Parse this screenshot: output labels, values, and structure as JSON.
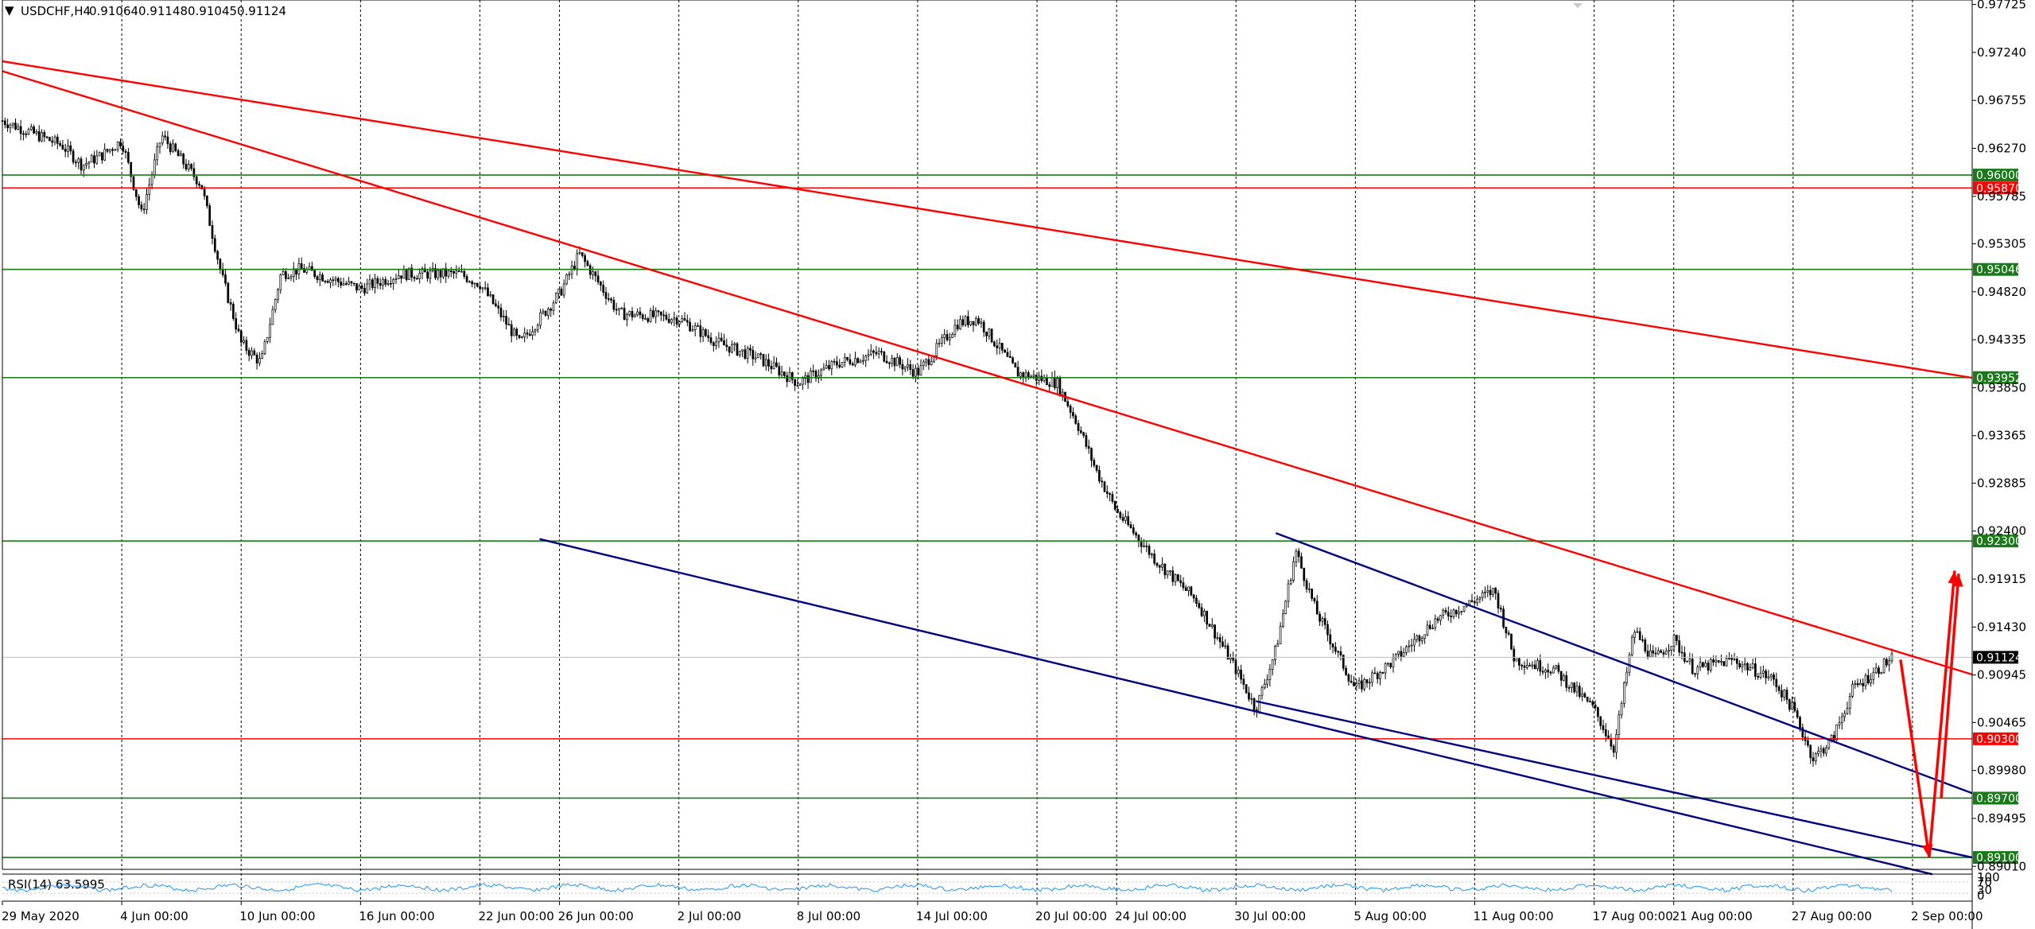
{
  "header": {
    "symbol_label": "USDCHF,H4",
    "ohlc": [
      "0.91064",
      "0.91148",
      "0.91045",
      "0.91124"
    ]
  },
  "rsi": {
    "label": "RSI(14) 63.5995",
    "scale_labels": [
      "100",
      "70",
      "30",
      "0"
    ],
    "color": "#1e90ff"
  },
  "chart_data": {
    "type": "candlestick",
    "title": "",
    "xlabel": "",
    "ylabel": "",
    "x_ticks": [
      "29 May 2020",
      "4 Jun 00:00",
      "10 Jun 00:00",
      "16 Jun 00:00",
      "22 Jun 00:00",
      "26 Jun 00:00",
      "2 Jul 00:00",
      "8 Jul 00:00",
      "14 Jul 00:00",
      "20 Jul 00:00",
      "24 Jul 00:00",
      "30 Jul 00:00",
      "5 Aug 00:00",
      "11 Aug 00:00",
      "17 Aug 00:00",
      "21 Aug 00:00",
      "27 Aug 00:00",
      "2 Sep 00:00"
    ],
    "y_ticks": [
      "0.97725",
      "0.97240",
      "0.96755",
      "0.96270",
      "0.95785",
      "0.95305",
      "0.94820",
      "0.94335",
      "0.93850",
      "0.93365",
      "0.92885",
      "0.92400",
      "0.91915",
      "0.91430",
      "0.90945",
      "0.90465",
      "0.89980",
      "0.89495",
      "0.89010"
    ],
    "ylim": [
      0.8898,
      0.9777
    ],
    "grid": true,
    "last_price": "0.91124",
    "price_path": [
      {
        "x": "29 May 2020",
        "y": 0.9655
      },
      {
        "x": "1 Jun",
        "y": 0.963
      },
      {
        "x": "2 Jun",
        "y": 0.961
      },
      {
        "x": "3 Jun",
        "y": 0.962
      },
      {
        "x": "4 Jun",
        "y": 0.9635
      },
      {
        "x": "5 Jun",
        "y": 0.956
      },
      {
        "x": "6 Jun",
        "y": 0.964
      },
      {
        "x": "8 Jun",
        "y": 0.959
      },
      {
        "x": "9 Jun",
        "y": 0.95
      },
      {
        "x": "10 Jun",
        "y": 0.943
      },
      {
        "x": "11 Jun",
        "y": 0.941
      },
      {
        "x": "12 Jun",
        "y": 0.95
      },
      {
        "x": "13 Jun",
        "y": 0.9505
      },
      {
        "x": "16 Jun",
        "y": 0.9485
      },
      {
        "x": "18 Jun",
        "y": 0.95
      },
      {
        "x": "21 Jun",
        "y": 0.95
      },
      {
        "x": "22 Jun",
        "y": 0.949
      },
      {
        "x": "24 Jun",
        "y": 0.943
      },
      {
        "x": "26 Jun",
        "y": 0.948
      },
      {
        "x": "27 Jun",
        "y": 0.952
      },
      {
        "x": "29 Jun",
        "y": 0.946
      },
      {
        "x": "2 Jul",
        "y": 0.9455
      },
      {
        "x": "4 Jul",
        "y": 0.943
      },
      {
        "x": "6 Jul",
        "y": 0.9415
      },
      {
        "x": "8 Jul",
        "y": 0.939
      },
      {
        "x": "10 Jul",
        "y": 0.941
      },
      {
        "x": "12 Jul",
        "y": 0.942
      },
      {
        "x": "14 Jul",
        "y": 0.94
      },
      {
        "x": "16 Jul",
        "y": 0.945
      },
      {
        "x": "17 Jul",
        "y": 0.9455
      },
      {
        "x": "19 Jul",
        "y": 0.94
      },
      {
        "x": "21 Jul",
        "y": 0.939
      },
      {
        "x": "22 Jul",
        "y": 0.935
      },
      {
        "x": "23 Jul",
        "y": 0.93
      },
      {
        "x": "24 Jul",
        "y": 0.926
      },
      {
        "x": "26 Jul",
        "y": 0.921
      },
      {
        "x": "28 Jul",
        "y": 0.917
      },
      {
        "x": "30 Jul",
        "y": 0.91
      },
      {
        "x": "31 Jul",
        "y": 0.906
      },
      {
        "x": "1 Aug",
        "y": 0.912
      },
      {
        "x": "2 Aug",
        "y": 0.922
      },
      {
        "x": "3 Aug",
        "y": 0.916
      },
      {
        "x": "5 Aug",
        "y": 0.908
      },
      {
        "x": "7 Aug",
        "y": 0.911
      },
      {
        "x": "9 Aug",
        "y": 0.915
      },
      {
        "x": "11 Aug",
        "y": 0.917
      },
      {
        "x": "12 Aug",
        "y": 0.918
      },
      {
        "x": "13 Aug",
        "y": 0.911
      },
      {
        "x": "15 Aug",
        "y": 0.91
      },
      {
        "x": "17 Aug",
        "y": 0.906
      },
      {
        "x": "18 Aug",
        "y": 0.902
      },
      {
        "x": "19 Aug",
        "y": 0.914
      },
      {
        "x": "20 Aug",
        "y": 0.911
      },
      {
        "x": "21 Aug",
        "y": 0.913
      },
      {
        "x": "22 Aug",
        "y": 0.91
      },
      {
        "x": "24 Aug",
        "y": 0.911
      },
      {
        "x": "26 Aug",
        "y": 0.909
      },
      {
        "x": "27 Aug",
        "y": 0.906
      },
      {
        "x": "28 Aug",
        "y": 0.901
      },
      {
        "x": "29 Aug",
        "y": 0.903
      },
      {
        "x": "30 Aug",
        "y": 0.908
      },
      {
        "x": "1 Sep",
        "y": 0.9112
      }
    ],
    "horizontal_levels": [
      {
        "label": "0.96000",
        "price": 0.96,
        "color": "#1a7a1a"
      },
      {
        "label": "0.95870",
        "price": 0.9587,
        "color": "#ff0000"
      },
      {
        "label": "0.95046",
        "price": 0.95046,
        "color": "#1a7a1a"
      },
      {
        "label": "0.93952",
        "price": 0.93952,
        "color": "#1a7a1a"
      },
      {
        "label": "0.92300",
        "price": 0.923,
        "color": "#1a7a1a"
      },
      {
        "label": "0.90300",
        "price": 0.903,
        "color": "#ff0000"
      },
      {
        "label": "0.89700",
        "price": 0.897,
        "color": "#1a7a1a"
      },
      {
        "label": "0.89100",
        "price": 0.891,
        "color": "#1a7a1a"
      }
    ],
    "trendlines": [
      {
        "from": {
          "x": "29 May 2020",
          "y": 0.9715
        },
        "to": {
          "x": "5 Sep",
          "y": 0.9395
        },
        "color": "#ff0000"
      },
      {
        "from": {
          "x": "29 May 2020",
          "y": 0.9705
        },
        "to": {
          "x": "5 Sep",
          "y": 0.9095
        },
        "color": "#ff0000"
      },
      {
        "from": {
          "x": "25 Jun",
          "y": 0.9232
        },
        "to": {
          "x": "3 Sep",
          "y": 0.8893
        },
        "color": "#000080"
      },
      {
        "from": {
          "x": "1 Aug",
          "y": 0.9238
        },
        "to": {
          "x": "5 Sep",
          "y": 0.8975
        },
        "color": "#000080"
      },
      {
        "from": {
          "x": "31 Jul",
          "y": 0.9068
        },
        "to": {
          "x": "5 Sep",
          "y": 0.891
        },
        "color": "#000080"
      }
    ],
    "projection_arrows": [
      {
        "from": {
          "x": "1 Sep",
          "y": 0.911
        },
        "to": {
          "x": "3 Sep",
          "y": 0.891
        }
      },
      {
        "from": {
          "x": "3 Sep",
          "y": 0.891
        },
        "to": {
          "x": "3 Sep",
          "y": 0.92
        }
      },
      {
        "from": {
          "x": "3 Sep",
          "y": 0.897
        },
        "to": {
          "x": "4 Sep",
          "y": 0.9197
        }
      }
    ],
    "colors": {
      "grid": "#000000",
      "candles": "#000000",
      "level_green": "#1a7a1a",
      "level_red": "#ff0000",
      "channel": "#000080",
      "arrow": "#ff0000",
      "current_price_bg": "#000000"
    }
  }
}
